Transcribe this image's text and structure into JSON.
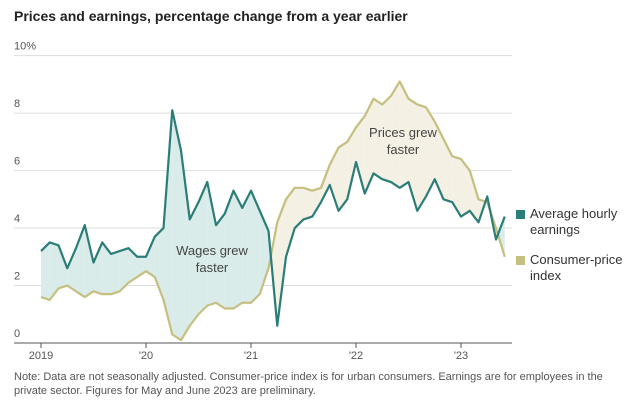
{
  "chart_data": {
    "type": "line",
    "title": "Prices and earnings, percentage change from a year earlier",
    "categories": [
      "2019",
      null,
      null,
      null,
      null,
      null,
      null,
      null,
      null,
      null,
      null,
      null,
      "'20",
      null,
      null,
      null,
      null,
      null,
      null,
      null,
      null,
      null,
      null,
      null,
      "'21",
      null,
      null,
      null,
      null,
      null,
      null,
      null,
      null,
      null,
      null,
      null,
      "'22",
      null,
      null,
      null,
      null,
      null,
      null,
      null,
      null,
      null,
      null,
      null,
      "'23",
      null,
      null,
      null,
      null,
      null
    ],
    "series": [
      {
        "name": "Average hourly earnings",
        "color": "#2b7d78",
        "fill": "#d9ecea",
        "values": [
          3.2,
          3.5,
          3.4,
          2.6,
          3.3,
          4.1,
          2.8,
          3.5,
          3.1,
          3.2,
          3.3,
          3.0,
          3.0,
          3.7,
          4.0,
          8.1,
          6.7,
          4.3,
          4.9,
          5.6,
          4.1,
          4.5,
          5.3,
          4.7,
          5.3,
          4.6,
          3.9,
          0.6,
          3.0,
          4.0,
          4.3,
          4.4,
          4.9,
          5.5,
          4.6,
          5.0,
          6.3,
          5.2,
          5.9,
          5.7,
          5.6,
          5.4,
          5.6,
          4.6,
          5.1,
          5.7,
          5.0,
          4.9,
          4.4,
          4.6,
          4.2,
          5.1,
          3.6,
          4.4
        ]
      },
      {
        "name": "Consumer-price index",
        "color": "#c5bf80",
        "fill": "#f4f0e4",
        "values": [
          1.6,
          1.5,
          1.9,
          2.0,
          1.8,
          1.6,
          1.8,
          1.7,
          1.7,
          1.8,
          2.1,
          2.3,
          2.5,
          2.3,
          1.5,
          0.3,
          0.1,
          0.6,
          1.0,
          1.3,
          1.4,
          1.2,
          1.2,
          1.4,
          1.4,
          1.7,
          2.6,
          4.2,
          5.0,
          5.4,
          5.4,
          5.3,
          5.4,
          6.2,
          6.8,
          7.0,
          7.5,
          7.9,
          8.5,
          8.3,
          8.6,
          9.1,
          8.5,
          8.3,
          8.2,
          7.7,
          7.1,
          6.5,
          6.4,
          6.0,
          5.0,
          4.9,
          4.0,
          3.0
        ]
      }
    ],
    "ylim": [
      0,
      10.3
    ],
    "yticks": [
      0,
      2,
      4,
      6,
      8,
      {
        "value": 10,
        "label": "10%"
      }
    ],
    "grid": true,
    "annotations": [
      "Wages grew faster",
      "Prices grew faster"
    ],
    "note": "Note: Data are not seasonally adjusted. Consumer-price index is for urban consumers. Earnings are for employees in the private sector. Figures for May and June 2023 are preliminary."
  }
}
